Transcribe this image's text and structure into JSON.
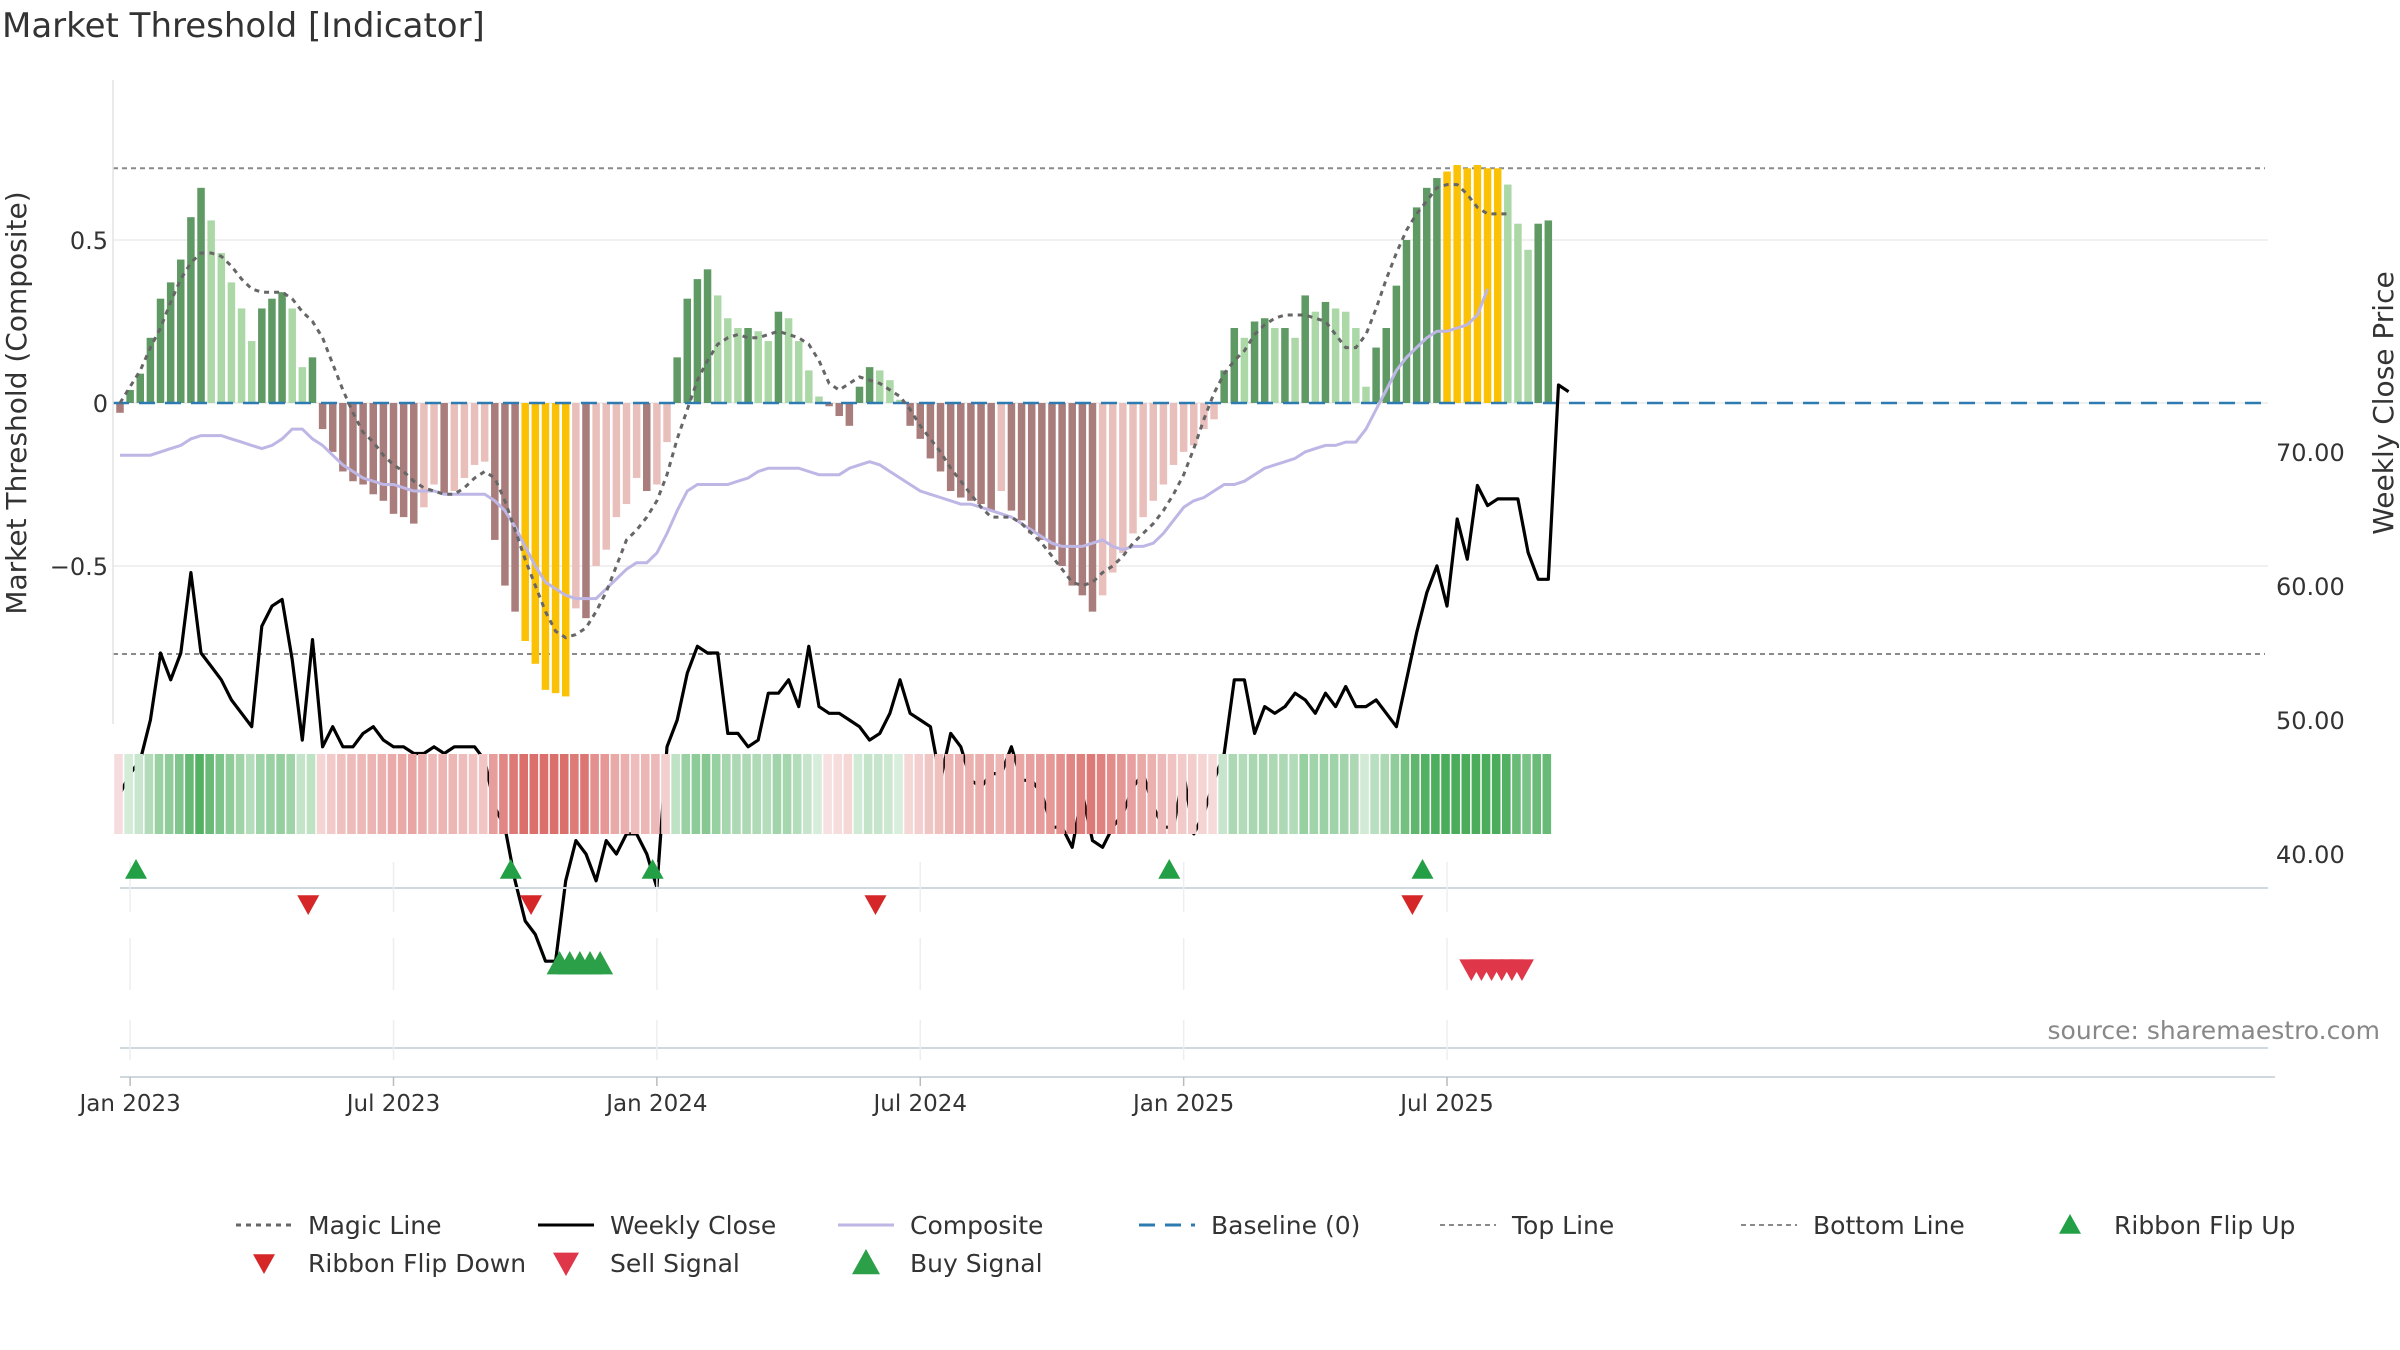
{
  "chart_data": {
    "type": "bar",
    "title": "Market Threshold [Indicator]",
    "ylabel_left": "Market Threshold (Composite)",
    "ylabel_right": "Weekly Close Price",
    "ylim_left": [
      -1.0,
      1.0
    ],
    "ylim_right": [
      29.75,
      77.75
    ],
    "left_ticks": [
      {
        "v": 0.5,
        "label": "0.5"
      },
      {
        "v": 0,
        "label": "0"
      },
      {
        "v": -0.5,
        "label": "−0.5"
      }
    ],
    "right_ticks": [
      {
        "v": 70,
        "label": "70.00"
      },
      {
        "v": 60,
        "label": "60.00"
      },
      {
        "v": 50,
        "label": "50.00"
      },
      {
        "v": 40,
        "label": "40.00"
      }
    ],
    "top_line": 0.72,
    "bottom_line": -0.77,
    "x_ticks": [
      {
        "w": 1,
        "label": "Jan 2023"
      },
      {
        "w": 27,
        "label": "Jul 2023"
      },
      {
        "w": 53,
        "label": "Jan 2024"
      },
      {
        "w": 79,
        "label": "Jul 2024"
      },
      {
        "w": 105,
        "label": "Jan 2025"
      },
      {
        "w": 131,
        "label": "Jul 2025"
      }
    ],
    "colors": {
      "bull_strong": "#5f9964",
      "bull_weak": "#acd8a7",
      "bear_strong": "#a97d7b",
      "bear_weak": "#e9bfbc",
      "extreme": "#fbc104",
      "ribbon_bull": "#37a44a",
      "ribbon_bear": "#d65f5c",
      "weekly_close": "#000000",
      "composite": "#beb6e5",
      "magic": "#666666",
      "baseline": "#2d7bb0",
      "top_bottom": "#8a8a8a",
      "flip_up": "#23a046",
      "flip_down": "#d62728",
      "sell": "#e0364a",
      "buy": "#2ca048"
    },
    "composite": [
      -0.03,
      0.04,
      0.09,
      0.2,
      0.32,
      0.37,
      0.44,
      0.57,
      0.66,
      0.56,
      0.46,
      0.37,
      0.29,
      0.19,
      0.29,
      0.32,
      0.34,
      0.29,
      0.11,
      0.14,
      -0.08,
      -0.15,
      -0.21,
      -0.24,
      -0.25,
      -0.28,
      -0.3,
      -0.34,
      -0.35,
      -0.37,
      -0.32,
      -0.25,
      -0.28,
      -0.27,
      -0.23,
      -0.19,
      -0.18,
      -0.42,
      -0.56,
      -0.64,
      -0.73,
      -0.8,
      -0.88,
      -0.89,
      -0.9,
      -0.63,
      -0.66,
      -0.5,
      -0.45,
      -0.35,
      -0.31,
      -0.23,
      -0.27,
      -0.25,
      -0.12,
      0.14,
      0.32,
      0.38,
      0.41,
      0.33,
      0.26,
      0.23,
      0.23,
      0.22,
      0.19,
      0.28,
      0.26,
      0.19,
      0.1,
      0.02,
      -0.01,
      -0.04,
      -0.07,
      0.05,
      0.11,
      0.1,
      0.07,
      0.01,
      -0.07,
      -0.11,
      -0.17,
      -0.21,
      -0.27,
      -0.29,
      -0.3,
      -0.31,
      -0.33,
      -0.27,
      -0.33,
      -0.36,
      -0.4,
      -0.42,
      -0.45,
      -0.5,
      -0.56,
      -0.59,
      -0.64,
      -0.59,
      -0.52,
      -0.46,
      -0.4,
      -0.35,
      -0.3,
      -0.25,
      -0.19,
      -0.15,
      -0.13,
      -0.08,
      -0.05,
      0.1,
      0.23,
      0.2,
      0.25,
      0.26,
      0.23,
      0.23,
      0.2,
      0.33,
      0.28,
      0.31,
      0.29,
      0.28,
      0.23,
      0.05,
      0.17,
      0.23,
      0.36,
      0.5,
      0.6,
      0.66,
      0.69,
      0.71,
      0.73,
      0.72,
      0.73,
      0.72,
      0.72,
      0.67,
      0.55,
      0.47,
      0.55,
      0.56
    ],
    "weekly_close": [
      44.5,
      46.0,
      47.0,
      50.0,
      55.0,
      53.0,
      55.0,
      61.0,
      55.0,
      54.0,
      53.0,
      51.5,
      50.5,
      49.5,
      57.0,
      58.5,
      59.0,
      54.5,
      48.5,
      56.0,
      48.0,
      49.5,
      48.0,
      48.0,
      49.0,
      49.5,
      48.5,
      48.0,
      48.0,
      47.5,
      47.5,
      48.0,
      47.5,
      48.0,
      48.0,
      48.0,
      47.0,
      43.5,
      42.0,
      38.0,
      35.0,
      34.0,
      32.0,
      32.0,
      38.0,
      41.0,
      40.0,
      38.0,
      41.0,
      40.0,
      41.5,
      41.5,
      40.0,
      37.5,
      48.0,
      50.0,
      53.5,
      55.5,
      55.0,
      55.0,
      49.0,
      49.0,
      48.0,
      48.5,
      52.0,
      52.0,
      53.0,
      51.0,
      55.5,
      51.0,
      50.5,
      50.5,
      50.0,
      49.5,
      48.5,
      49.0,
      50.5,
      53.0,
      50.5,
      50.0,
      49.5,
      45.5,
      49.0,
      48.0,
      45.5,
      45.0,
      46.0,
      46.0,
      48.0,
      45.5,
      45.5,
      44.5,
      42.0,
      42.0,
      40.5,
      44.5,
      41.0,
      40.5,
      42.0,
      43.0,
      45.0,
      46.0,
      43.5,
      42.0,
      42.0,
      46.0,
      41.5,
      43.0,
      45.5,
      47.5,
      53.0,
      53.0,
      49.0,
      51.0,
      50.5,
      51.0,
      52.0,
      51.5,
      50.5,
      52.0,
      51.0,
      52.5,
      51.0,
      51.0,
      51.5,
      50.5,
      49.5,
      53.0,
      56.5,
      59.5,
      61.5,
      58.5,
      65.0,
      62.0,
      67.5,
      66.0,
      66.5,
      66.5,
      66.5,
      62.5,
      60.5,
      60.5,
      75.0,
      74.5
    ],
    "composite_line": [
      -0.16,
      -0.16,
      -0.16,
      -0.16,
      -0.15,
      -0.14,
      -0.13,
      -0.11,
      -0.1,
      -0.1,
      -0.1,
      -0.11,
      -0.12,
      -0.13,
      -0.14,
      -0.13,
      -0.11,
      -0.08,
      -0.08,
      -0.11,
      -0.13,
      -0.16,
      -0.19,
      -0.21,
      -0.23,
      -0.24,
      -0.25,
      -0.25,
      -0.26,
      -0.27,
      -0.27,
      -0.27,
      -0.28,
      -0.28,
      -0.28,
      -0.28,
      -0.28,
      -0.3,
      -0.33,
      -0.38,
      -0.44,
      -0.5,
      -0.55,
      -0.57,
      -0.59,
      -0.6,
      -0.6,
      -0.6,
      -0.57,
      -0.54,
      -0.51,
      -0.49,
      -0.49,
      -0.46,
      -0.4,
      -0.33,
      -0.27,
      -0.25,
      -0.25,
      -0.25,
      -0.25,
      -0.24,
      -0.23,
      -0.21,
      -0.2,
      -0.2,
      -0.2,
      -0.2,
      -0.21,
      -0.22,
      -0.22,
      -0.22,
      -0.2,
      -0.19,
      -0.18,
      -0.19,
      -0.21,
      -0.23,
      -0.25,
      -0.27,
      -0.28,
      -0.29,
      -0.3,
      -0.31,
      -0.31,
      -0.32,
      -0.33,
      -0.34,
      -0.35,
      -0.37,
      -0.39,
      -0.41,
      -0.43,
      -0.44,
      -0.44,
      -0.44,
      -0.43,
      -0.42,
      -0.44,
      -0.45,
      -0.44,
      -0.44,
      -0.43,
      -0.4,
      -0.36,
      -0.32,
      -0.3,
      -0.29,
      -0.27,
      -0.25,
      -0.25,
      -0.24,
      -0.22,
      -0.2,
      -0.19,
      -0.18,
      -0.17,
      -0.15,
      -0.14,
      -0.13,
      -0.13,
      -0.12,
      -0.12,
      -0.08,
      -0.02,
      0.04,
      0.1,
      0.14,
      0.17,
      0.2,
      0.22,
      0.22,
      0.23,
      0.24,
      0.27,
      0.35
    ],
    "magic_line": [
      0.0,
      0.05,
      0.1,
      0.17,
      0.23,
      0.31,
      0.38,
      0.43,
      0.46,
      0.46,
      0.45,
      0.42,
      0.38,
      0.35,
      0.34,
      0.34,
      0.34,
      0.32,
      0.28,
      0.25,
      0.2,
      0.12,
      0.04,
      -0.03,
      -0.09,
      -0.12,
      -0.16,
      -0.19,
      -0.21,
      -0.24,
      -0.26,
      -0.27,
      -0.28,
      -0.28,
      -0.26,
      -0.23,
      -0.21,
      -0.23,
      -0.3,
      -0.39,
      -0.48,
      -0.56,
      -0.64,
      -0.7,
      -0.72,
      -0.71,
      -0.69,
      -0.64,
      -0.58,
      -0.5,
      -0.42,
      -0.39,
      -0.35,
      -0.3,
      -0.22,
      -0.11,
      -0.02,
      0.07,
      0.13,
      0.18,
      0.2,
      0.21,
      0.2,
      0.2,
      0.21,
      0.22,
      0.21,
      0.2,
      0.18,
      0.13,
      0.06,
      0.04,
      0.06,
      0.08,
      0.07,
      0.06,
      0.04,
      0.02,
      -0.02,
      -0.07,
      -0.11,
      -0.15,
      -0.2,
      -0.24,
      -0.28,
      -0.32,
      -0.35,
      -0.35,
      -0.35,
      -0.37,
      -0.4,
      -0.43,
      -0.47,
      -0.51,
      -0.55,
      -0.56,
      -0.55,
      -0.52,
      -0.5,
      -0.47,
      -0.43,
      -0.4,
      -0.37,
      -0.33,
      -0.28,
      -0.22,
      -0.14,
      -0.05,
      0.03,
      0.09,
      0.13,
      0.16,
      0.21,
      0.24,
      0.26,
      0.27,
      0.27,
      0.27,
      0.26,
      0.25,
      0.21,
      0.17,
      0.17,
      0.21,
      0.29,
      0.38,
      0.46,
      0.53,
      0.58,
      0.62,
      0.66,
      0.67,
      0.67,
      0.64,
      0.6,
      0.58,
      0.58,
      0.58
    ],
    "ribbon_flip_up_weeks": [
      0,
      37,
      51,
      102,
      127
    ],
    "ribbon_flip_down_weeks": [
      17,
      39,
      73,
      126
    ],
    "buy_signal_weeks": [
      43,
      44,
      45,
      46,
      47
    ],
    "sell_signal_weeks": [
      133,
      134,
      135,
      136,
      137,
      138
    ],
    "legend": [
      "Magic Line",
      "Weekly Close",
      "Composite",
      "Baseline (0)",
      "Top Line",
      "Bottom Line",
      "Ribbon Flip Up",
      "Ribbon Flip Down",
      "Sell Signal",
      "Buy Signal"
    ],
    "source": "source: sharemaestro.com"
  }
}
